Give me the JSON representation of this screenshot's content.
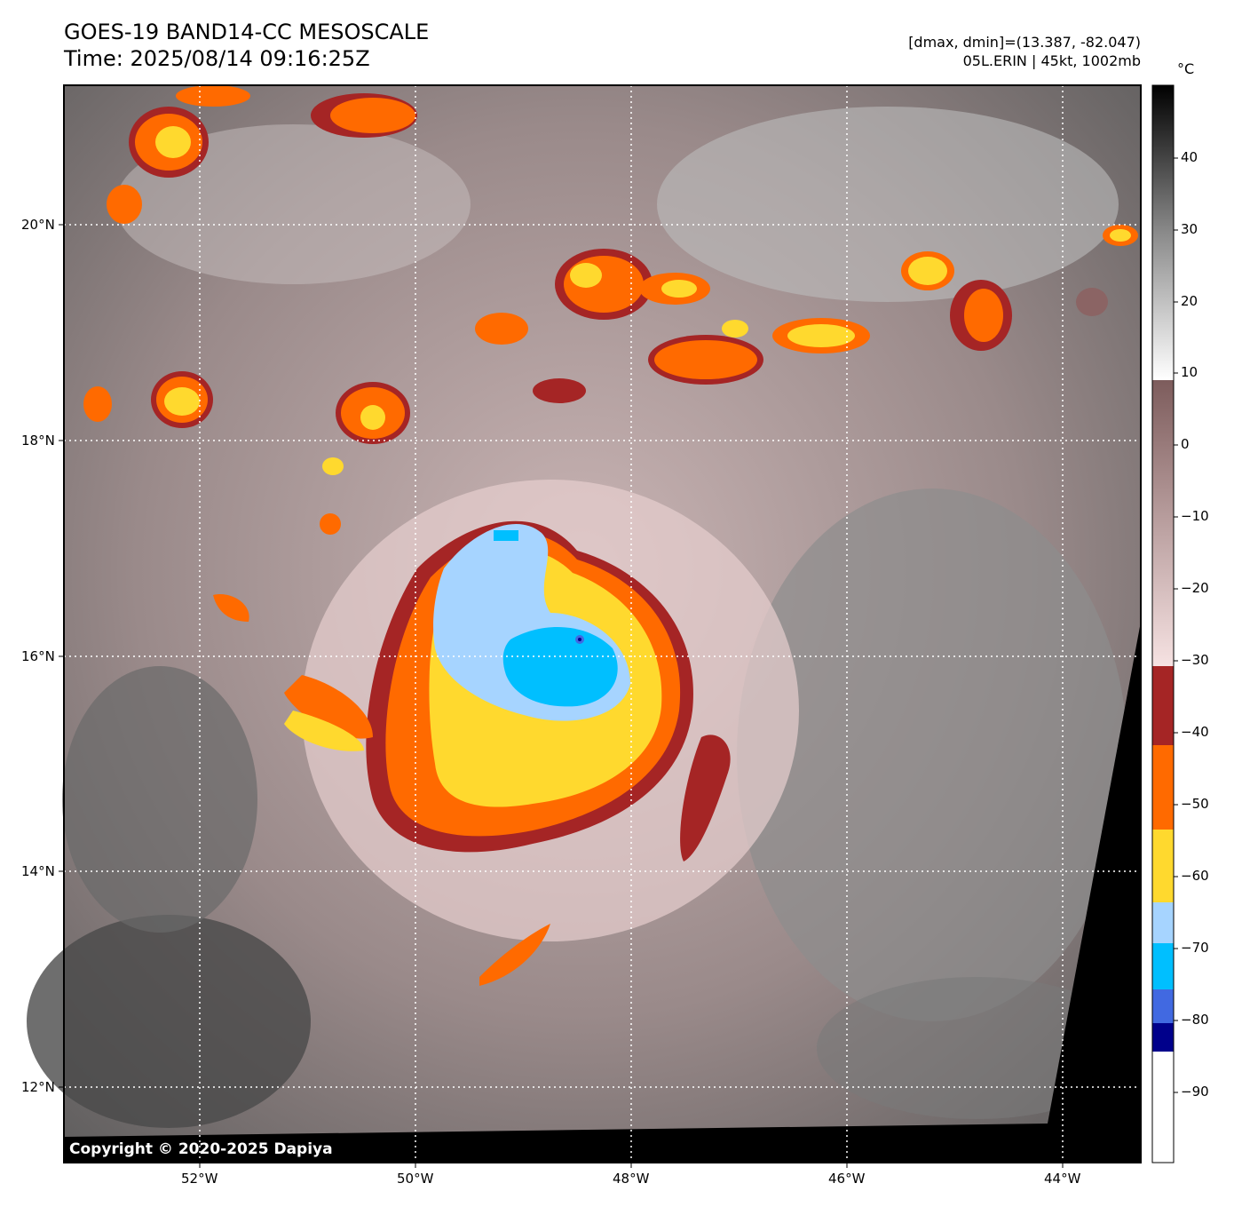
{
  "header": {
    "title_line1": "GOES-19 BAND14-CC MESOSCALE",
    "title_line2": "Time: 2025/08/14 09:16:25Z",
    "info_line1": "[dmax, dmin]=(13.387, -82.047)",
    "info_line2": "05L.ERIN | 45kt, 1002mb"
  },
  "map": {
    "lon_labels": [
      "52°W",
      "50°W",
      "48°W",
      "46°W",
      "44°W"
    ],
    "lat_labels": [
      "20°N",
      "18°N",
      "16°N",
      "14°N",
      "12°N"
    ],
    "copyright": "Copyright © 2020-2025 Dapiya",
    "storm_center_marker": "storm-center-marker"
  },
  "colorbar": {
    "unit": "°C",
    "ticks": [
      "40",
      "30",
      "20",
      "10",
      "0",
      "−10",
      "−20",
      "−30",
      "−40",
      "−50",
      "−60",
      "−70",
      "−80",
      "−90"
    ],
    "colors": {
      "warm_black": "#000000",
      "gray_mid": "#8a8a8a",
      "white": "#ffffff",
      "brown": "#8b6464",
      "pink": "#f2d8d8",
      "dark_red": "#a52525",
      "orange": "#ff6a00",
      "yellow": "#ffd92e",
      "light_blue": "#a6d4ff",
      "cyan": "#00bfff",
      "royal_blue": "#4169e1",
      "navy": "#00008b"
    }
  }
}
